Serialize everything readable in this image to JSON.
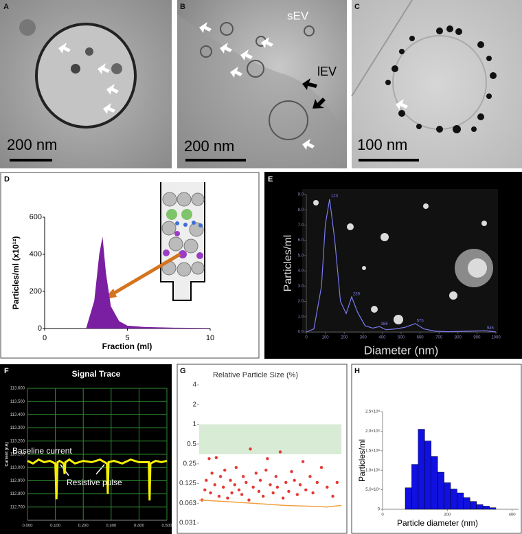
{
  "micrographs": [
    {
      "panel_label": "A",
      "scale_bar": "200 nm"
    },
    {
      "panel_label": "B",
      "scale_bar": "200 nm",
      "annotations": [
        "sEV",
        "lEV"
      ]
    },
    {
      "panel_label": "C",
      "scale_bar": "100 nm"
    }
  ],
  "chart_data": [
    {
      "type": "area",
      "panel_label": "D",
      "y_label": "Particles/ml (x10¹²)",
      "x_label": "Fraction (ml)",
      "color": "#7b1fa2",
      "x": [
        2.5,
        3,
        3.3,
        3.5,
        3.7,
        4,
        4.5,
        5,
        5.5,
        6,
        7,
        8,
        10
      ],
      "values": [
        0,
        150,
        400,
        495,
        300,
        120,
        40,
        15,
        12,
        8,
        6,
        4,
        3
      ],
      "xlim": [
        0,
        10
      ],
      "xticks": [
        0,
        5,
        10
      ],
      "ylim": [
        0,
        600
      ],
      "yticks": [
        0,
        200,
        400,
        600
      ]
    },
    {
      "type": "line",
      "panel_label": "E",
      "y_label": "Particles/ml",
      "x_label": "Diameter (nm)",
      "color": "#7b7cf0",
      "x": [
        0,
        40,
        80,
        100,
        123,
        150,
        180,
        210,
        239,
        270,
        310,
        350,
        386,
        420,
        470,
        520,
        575,
        620,
        680,
        750,
        850,
        945,
        1000
      ],
      "values": [
        0,
        0.2,
        3,
        7,
        8.7,
        6,
        2,
        1.2,
        2.3,
        1.3,
        0.4,
        0.25,
        0.35,
        0.15,
        0.2,
        0.3,
        0.55,
        0.2,
        0.05,
        0.02,
        0.05,
        0.08,
        0
      ],
      "peaks": [
        123,
        239,
        386,
        575,
        945
      ],
      "xlim": [
        0,
        1000
      ],
      "xticks": [
        0,
        100,
        200,
        300,
        400,
        500,
        600,
        700,
        800,
        900,
        1000
      ],
      "ylim": [
        0,
        9
      ],
      "yticks": [
        {
          "value": 0,
          "label": "0.0"
        },
        {
          "value": 1,
          "label": "1.0"
        },
        {
          "value": 2,
          "label": "2.0"
        },
        {
          "value": 3,
          "label": "3.0"
        },
        {
          "value": 4,
          "label": "4.0"
        },
        {
          "value": 5,
          "label": "5.0"
        },
        {
          "value": 6,
          "label": "6.0"
        },
        {
          "value": 7,
          "label": "7.0"
        },
        {
          "value": 8,
          "label": "8.0"
        },
        {
          "value": 9,
          "label": "9.0"
        }
      ]
    },
    {
      "type": "trace",
      "panel_label": "F",
      "title": "Signal Trace",
      "y_label": "Current (nA)",
      "color": "#f5f000",
      "grid": true,
      "annotations": [
        "Baseline current",
        "Resistive pulse"
      ],
      "x": [
        0,
        0.02,
        0.04,
        0.06,
        0.08,
        0.1,
        0.104,
        0.106,
        0.108,
        0.115,
        0.13,
        0.133,
        0.136,
        0.15,
        0.17,
        0.2,
        0.23,
        0.26,
        0.285,
        0.288,
        0.291,
        0.31,
        0.34,
        0.37,
        0.4,
        0.435,
        0.438,
        0.441,
        0.46,
        0.48,
        0.5
      ],
      "values": [
        113.05,
        113.03,
        113.06,
        113.04,
        113.05,
        113.03,
        112.76,
        112.9,
        113.04,
        113.05,
        113.03,
        112.95,
        113.04,
        113.06,
        113.03,
        113.05,
        113.04,
        113.06,
        113.03,
        112.8,
        113.04,
        113.05,
        113.03,
        113.06,
        113.04,
        113.04,
        112.75,
        113.03,
        113.05,
        113.04,
        113.05
      ],
      "xlim": [
        0,
        0.5
      ],
      "xticks": [
        {
          "value": 0,
          "label": "0.000"
        },
        {
          "value": 0.1,
          "label": "0.100"
        },
        {
          "value": 0.2,
          "label": "0.200"
        },
        {
          "value": 0.3,
          "label": "0.300"
        },
        {
          "value": 0.4,
          "label": "0.400"
        },
        {
          "value": 0.5,
          "label": "0.500"
        }
      ],
      "ylim": [
        112.6,
        113.6
      ],
      "yticks": [
        {
          "value": 112.7,
          "label": "112.700"
        },
        {
          "value": 112.8,
          "label": "112.800"
        },
        {
          "value": 112.9,
          "label": "112.900"
        },
        {
          "value": 113,
          "label": "113.000"
        },
        {
          "value": 113.1,
          "label": "113.100"
        },
        {
          "value": 113.2,
          "label": "113.200"
        },
        {
          "value": 113.3,
          "label": "113.300"
        },
        {
          "value": 113.4,
          "label": "113.400"
        },
        {
          "value": 113.5,
          "label": "113.500"
        },
        {
          "value": 113.6,
          "label": "113.600"
        }
      ]
    },
    {
      "type": "scatter",
      "panel_label": "G",
      "title": "Relative Particle Size (%)",
      "color": "#e53935",
      "log_y": true,
      "band": [
        0.35,
        1
      ],
      "band_color": "#d8ebd5",
      "x": [
        2,
        4,
        5,
        7,
        8,
        9,
        11,
        12,
        14,
        15,
        17,
        18,
        20,
        22,
        23,
        25,
        26,
        28,
        30,
        31,
        33,
        35,
        36,
        38,
        40,
        42,
        43,
        45,
        47,
        48,
        50,
        52,
        54,
        55,
        57,
        59,
        61,
        63,
        65,
        67,
        69,
        71,
        73,
        75,
        78,
        80,
        83,
        86,
        90,
        94,
        97
      ],
      "values": [
        0.07,
        0.1,
        0.14,
        0.3,
        0.09,
        0.18,
        0.12,
        0.31,
        0.08,
        0.16,
        0.11,
        0.2,
        0.075,
        0.14,
        0.09,
        0.12,
        0.22,
        0.1,
        0.085,
        0.16,
        0.13,
        0.07,
        0.42,
        0.11,
        0.18,
        0.095,
        0.14,
        0.08,
        0.2,
        0.3,
        0.12,
        0.09,
        0.16,
        0.11,
        0.38,
        0.075,
        0.13,
        0.095,
        0.19,
        0.14,
        0.085,
        0.12,
        0.27,
        0.1,
        0.16,
        0.09,
        0.13,
        0.22,
        0.11,
        0.08,
        0.13
      ],
      "trend": {
        "color": "#f0a040",
        "x": [
          0,
          10,
          20,
          30,
          40,
          50,
          60,
          70,
          80,
          90,
          100
        ],
        "values": [
          0.07,
          0.068,
          0.066,
          0.064,
          0.062,
          0.06,
          0.058,
          0.057,
          0.056,
          0.055,
          0.058
        ]
      },
      "xlim": [
        0,
        100
      ],
      "ylim": [
        0.03125,
        4
      ],
      "yticks": [
        {
          "value": 0.03125,
          "label": "0.031"
        },
        {
          "value": 0.0625,
          "label": "0.063"
        },
        0.125,
        0.25,
        0.5,
        1,
        2,
        4
      ]
    },
    {
      "type": "histogram",
      "panel_label": "H",
      "y_label": "Particles/ml",
      "x_label": "Particle diameter (nm)",
      "color": "#1010e0",
      "bins": [
        70,
        90,
        110,
        130,
        150,
        170,
        190,
        210,
        230,
        250,
        270,
        290,
        310,
        330,
        350
      ],
      "values": [
        55000000,
        115000000,
        205000000,
        175000000,
        135000000,
        95000000,
        68000000,
        52000000,
        42000000,
        30000000,
        20000000,
        12000000,
        8000000,
        4000000
      ],
      "xlim": [
        0,
        420
      ],
      "xticks": [
        0,
        200,
        400
      ],
      "ylim": [
        0,
        250000000
      ],
      "yticks": [
        0,
        {
          "value": 50000000,
          "label": "5.0×10⁷"
        },
        {
          "value": 100000000,
          "label": "1.0×10⁸"
        },
        {
          "value": 150000000,
          "label": "1.5×10⁸"
        },
        {
          "value": 200000000,
          "label": "2.0×10⁸"
        },
        {
          "value": 250000000,
          "label": "2.5×10⁸"
        }
      ]
    }
  ]
}
